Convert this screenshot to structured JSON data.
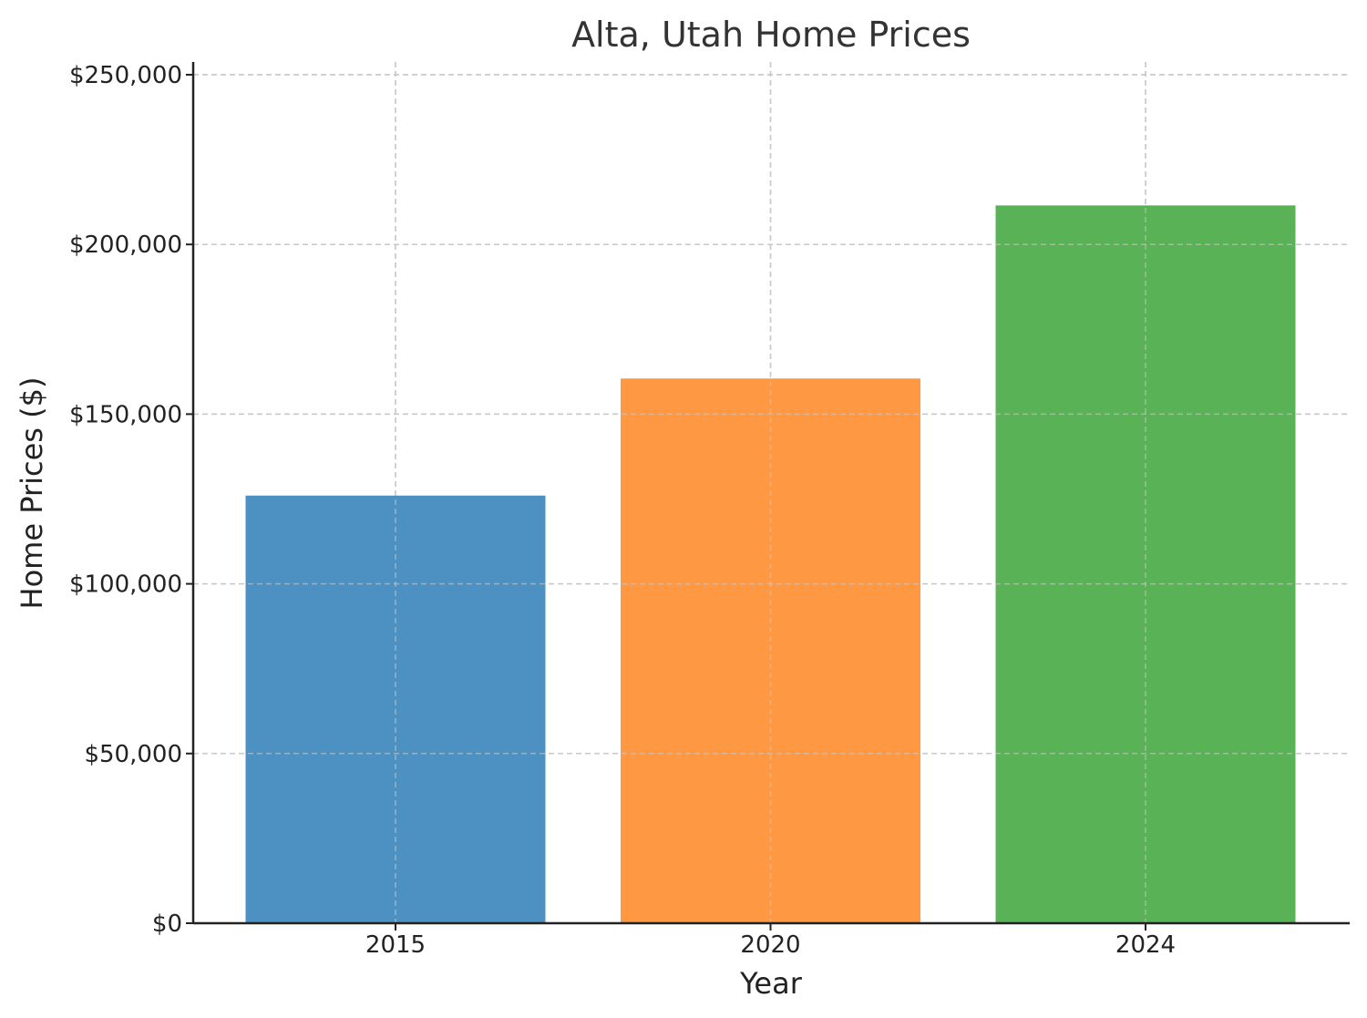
{
  "chart_data": {
    "type": "bar",
    "title": "Alta, Utah Home Prices",
    "xlabel": "Year",
    "ylabel": "Home Prices ($)",
    "categories": [
      "2015",
      "2020",
      "2024"
    ],
    "values": [
      126000,
      160500,
      211500
    ],
    "colors": [
      "#4c91c2",
      "#ff9843",
      "#59b356"
    ],
    "ylim": [
      0,
      250000
    ],
    "yticks": [
      0,
      50000,
      100000,
      150000,
      200000,
      250000
    ],
    "ytick_labels": [
      "$0",
      "$50,000",
      "$100,000",
      "$150,000",
      "$200,000",
      "$250,000"
    ],
    "grid": true,
    "grid_color": "#c8c8c8"
  }
}
